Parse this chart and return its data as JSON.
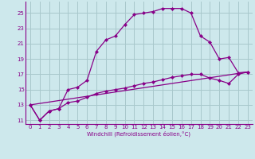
{
  "xlabel": "Windchill (Refroidissement éolien,°C)",
  "xlim": [
    -0.5,
    23.5
  ],
  "ylim": [
    10.5,
    26.5
  ],
  "yticks": [
    11,
    13,
    15,
    17,
    19,
    21,
    23,
    25
  ],
  "xticks": [
    0,
    1,
    2,
    3,
    4,
    5,
    6,
    7,
    8,
    9,
    10,
    11,
    12,
    13,
    14,
    15,
    16,
    17,
    18,
    19,
    20,
    21,
    22,
    23
  ],
  "bg_color": "#cde8ec",
  "grid_color": "#a8c8cc",
  "line_color": "#880088",
  "line1_x": [
    0,
    1,
    2,
    3,
    4,
    5,
    6,
    7,
    8,
    9,
    10,
    11,
    12,
    13,
    14,
    15,
    16,
    17,
    18,
    19,
    20,
    21,
    22,
    23
  ],
  "line1_y": [
    13,
    11,
    12.2,
    12.5,
    15.0,
    15.3,
    16.2,
    20.0,
    21.5,
    22.0,
    23.5,
    24.8,
    25.0,
    25.2,
    25.6,
    25.6,
    25.6,
    25.0,
    22.0,
    21.2,
    19.0,
    19.2,
    17.2,
    17.3
  ],
  "line2_x": [
    0,
    1,
    2,
    3,
    4,
    5,
    6,
    7,
    8,
    9,
    10,
    11,
    12,
    13,
    14,
    15,
    16,
    17,
    18,
    19,
    20,
    21,
    22,
    23
  ],
  "line2_y": [
    13,
    11,
    12.2,
    12.5,
    13.3,
    13.5,
    14.0,
    14.5,
    14.8,
    15.0,
    15.2,
    15.5,
    15.8,
    16.0,
    16.3,
    16.6,
    16.8,
    17.0,
    17.0,
    16.5,
    16.2,
    15.8,
    17.0,
    17.3
  ],
  "line3_x": [
    0,
    23
  ],
  "line3_y": [
    13,
    17.3
  ]
}
